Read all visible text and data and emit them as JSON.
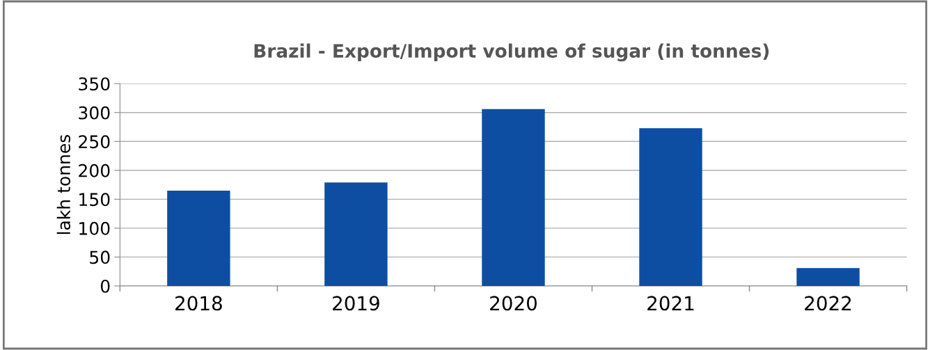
{
  "chart_data": {
    "type": "bar",
    "title": "Brazil - Export/Import volume of sugar (in tonnes)",
    "ylabel": "lakh tonnes",
    "categories": [
      "2018",
      "2019",
      "2020",
      "2021",
      "2022"
    ],
    "values": [
      165,
      179,
      306,
      273,
      31
    ],
    "color": "#0d4ea2",
    "ylim": [
      0,
      350
    ],
    "yticks": [
      0,
      50,
      100,
      150,
      200,
      250,
      300,
      350
    ],
    "grid": "y"
  }
}
